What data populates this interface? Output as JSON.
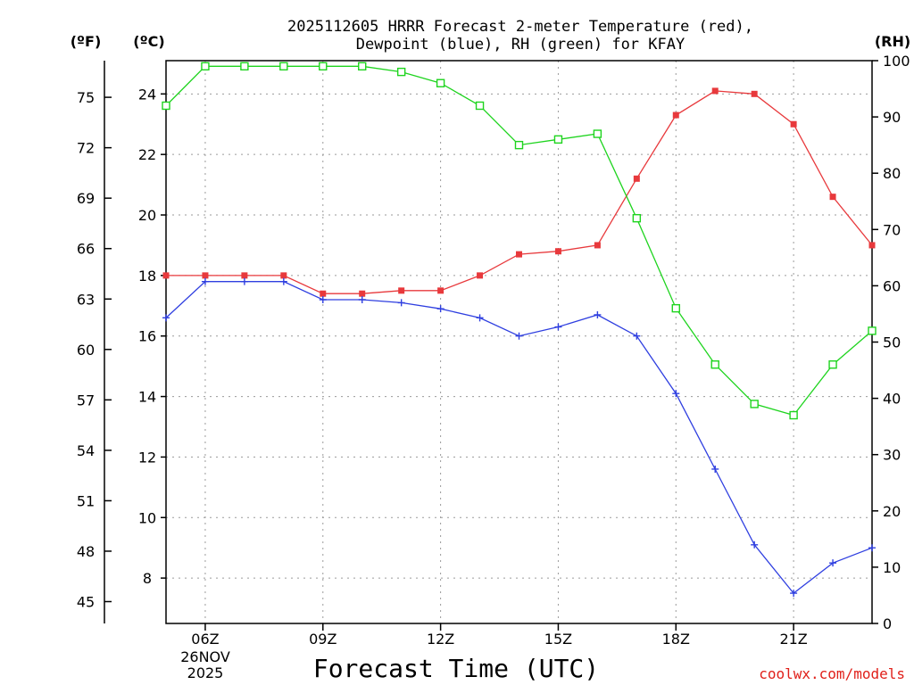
{
  "chart_data": {
    "type": "line",
    "title": "2025112605 HRRR Forecast 2-meter Temperature (red),",
    "title_line2": "Dewpoint (blue), RH (green) for KFAY",
    "xlabel": "Forecast Time (UTC)",
    "credit": "coolwx.com/models",
    "x_hours": [
      5,
      6,
      7,
      8,
      9,
      10,
      11,
      12,
      13,
      14,
      15,
      16,
      17,
      18,
      19,
      20,
      21,
      22,
      23
    ],
    "x_range": [
      5,
      23
    ],
    "x_ticks": [
      {
        "hour": 6,
        "label": "06Z"
      },
      {
        "hour": 9,
        "label": "09Z"
      },
      {
        "hour": 12,
        "label": "12Z"
      },
      {
        "hour": 15,
        "label": "15Z"
      },
      {
        "hour": 18,
        "label": "18Z"
      },
      {
        "hour": 21,
        "label": "21Z"
      }
    ],
    "date_label": [
      "26NOV",
      "2025"
    ],
    "y_celsius": {
      "unit_label": "(ºC)",
      "range": [
        6.5,
        25.1
      ],
      "ticks": [
        "8",
        "10",
        "12",
        "14",
        "16",
        "18",
        "20",
        "22",
        "24"
      ]
    },
    "y_fahrenheit": {
      "unit_label": "(ºF)",
      "ticks": [
        "45",
        "48",
        "51",
        "54",
        "57",
        "60",
        "63",
        "66",
        "69",
        "72",
        "75"
      ]
    },
    "y_rh": {
      "unit_label": "(RH)",
      "range": [
        0,
        100
      ],
      "ticks": [
        "0",
        "10",
        "20",
        "30",
        "40",
        "50",
        "60",
        "70",
        "80",
        "90",
        "100"
      ]
    },
    "series": [
      {
        "name": "Temperature",
        "axis": "celsius",
        "color": "#e8393c",
        "marker": "filled-square",
        "values": [
          18.0,
          18.0,
          18.0,
          18.0,
          17.4,
          17.4,
          17.5,
          17.5,
          18.0,
          18.7,
          18.8,
          19.0,
          21.2,
          23.3,
          24.1,
          24.0,
          23.0,
          20.6,
          19.0
        ]
      },
      {
        "name": "Dewpoint",
        "axis": "celsius",
        "color": "#2f3fe0",
        "marker": "plus",
        "values": [
          16.6,
          17.8,
          17.8,
          17.8,
          17.2,
          17.2,
          17.1,
          16.9,
          16.6,
          16.0,
          16.3,
          16.7,
          16.0,
          14.1,
          11.6,
          9.1,
          7.5,
          8.5,
          9.0
        ]
      },
      {
        "name": "RH",
        "axis": "rh",
        "color": "#1ed41e",
        "marker": "open-square",
        "values": [
          92,
          99,
          99,
          99,
          99,
          99,
          98,
          96,
          92,
          85,
          86,
          87,
          72,
          56,
          46,
          39,
          37,
          46,
          52
        ]
      }
    ]
  }
}
